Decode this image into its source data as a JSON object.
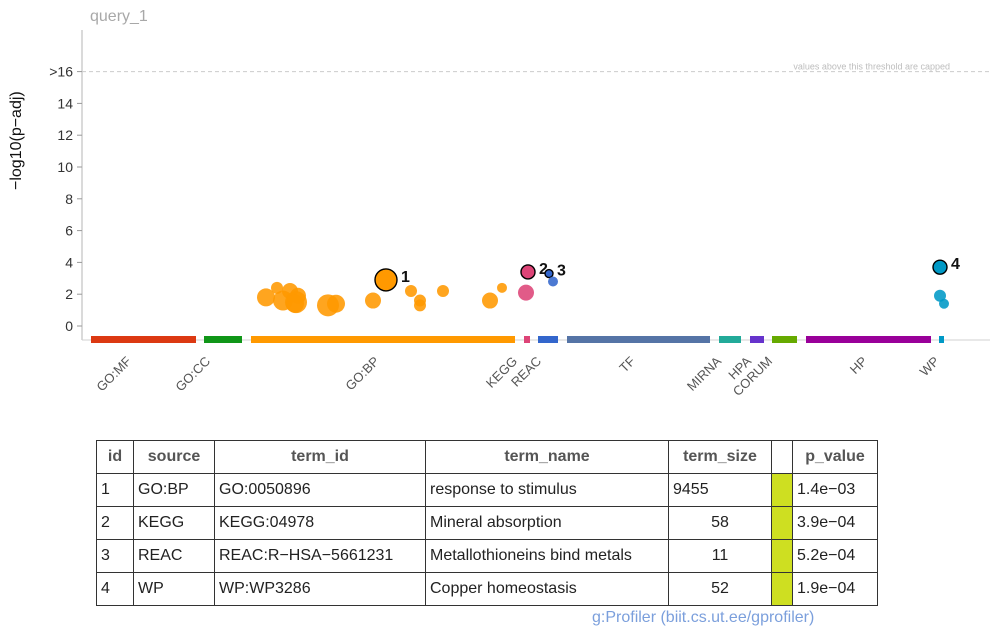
{
  "query": "query_1",
  "chart_data": {
    "type": "scatter",
    "ylabel": "−log10(p−adj)",
    "ylim": [
      0,
      17
    ],
    "y_ticks": [
      {
        "value": 0,
        "label": "0"
      },
      {
        "value": 2,
        "label": "2"
      },
      {
        "value": 4,
        "label": "4"
      },
      {
        "value": 6,
        "label": "6"
      },
      {
        "value": 8,
        "label": "8"
      },
      {
        "value": 10,
        "label": "10"
      },
      {
        "value": 12,
        "label": "12"
      },
      {
        "value": 14,
        "label": "14"
      },
      {
        "value": 16,
        "label": ">16"
      }
    ],
    "threshold": {
      "value": 16,
      "label": "values above this threshold are capped"
    },
    "sources": [
      {
        "name": "GO:MF",
        "color": "#dc3912"
      },
      {
        "name": "GO:CC",
        "color": "#109618"
      },
      {
        "name": "GO:BP",
        "color": "#ff9900"
      },
      {
        "name": "KEGG",
        "color": "#dd4477"
      },
      {
        "name": "REAC",
        "color": "#3366cc"
      },
      {
        "name": "TF",
        "color": "#5574a6"
      },
      {
        "name": "MIRNA",
        "color": "#22aa99"
      },
      {
        "name": "HPA",
        "color": "#6633cc"
      },
      {
        "name": "CORUM",
        "color": "#66aa00"
      },
      {
        "name": "HP",
        "color": "#990099"
      },
      {
        "name": "WP",
        "color": "#0099c6"
      }
    ],
    "points": [
      {
        "source": "GO:BP",
        "y": 1.8,
        "size": 9
      },
      {
        "source": "GO:BP",
        "y": 1.6,
        "size": 10
      },
      {
        "source": "GO:BP",
        "y": 2.2,
        "size": 8
      },
      {
        "source": "GO:BP",
        "y": 2.4,
        "size": 6
      },
      {
        "source": "GO:BP",
        "y": 1.5,
        "size": 11
      },
      {
        "source": "GO:BP",
        "y": 1.9,
        "size": 8
      },
      {
        "source": "GO:BP",
        "y": 1.4,
        "size": 9
      },
      {
        "source": "GO:BP",
        "y": 1.3,
        "size": 11
      },
      {
        "source": "GO:BP",
        "y": 1.4,
        "size": 9
      },
      {
        "source": "GO:BP",
        "y": 1.6,
        "size": 8
      },
      {
        "source": "GO:BP",
        "y": 2.9,
        "size": 11,
        "highlight": true,
        "label": "1"
      },
      {
        "source": "GO:BP",
        "y": 2.2,
        "size": 6
      },
      {
        "source": "GO:BP",
        "y": 1.6,
        "size": 6
      },
      {
        "source": "GO:BP",
        "y": 1.3,
        "size": 6
      },
      {
        "source": "GO:BP",
        "y": 2.2,
        "size": 6
      },
      {
        "source": "GO:BP",
        "y": 1.6,
        "size": 8
      },
      {
        "source": "GO:BP",
        "y": 2.4,
        "size": 5
      },
      {
        "source": "KEGG",
        "y": 2.1,
        "size": 8
      },
      {
        "source": "KEGG",
        "y": 3.4,
        "size": 7,
        "highlight": true,
        "label": "2"
      },
      {
        "source": "REAC",
        "y": 3.3,
        "size": 4,
        "highlight": true,
        "label": "3"
      },
      {
        "source": "REAC",
        "y": 2.8,
        "size": 5
      },
      {
        "source": "WP",
        "y": 3.7,
        "size": 7,
        "highlight": true,
        "label": "4"
      },
      {
        "source": "WP",
        "y": 1.9,
        "size": 6
      },
      {
        "source": "WP",
        "y": 1.4,
        "size": 5
      }
    ]
  },
  "table": {
    "headers": [
      "id",
      "source",
      "term_id",
      "term_name",
      "term_size",
      "",
      "p_value"
    ],
    "rows": [
      {
        "id": "1",
        "source": "GO:BP",
        "term_id": "GO:0050896",
        "term_name": "response to stimulus",
        "term_size": "9455",
        "p_value": "1.4e−03"
      },
      {
        "id": "2",
        "source": "KEGG",
        "term_id": "KEGG:04978",
        "term_name": "Mineral absorption",
        "term_size": "58",
        "p_value": "3.9e−04"
      },
      {
        "id": "3",
        "source": "REAC",
        "term_id": "REAC:R−HSA−5661231",
        "term_name": "Metallothioneins bind metals",
        "term_size": "11",
        "p_value": "5.2e−04"
      },
      {
        "id": "4",
        "source": "WP",
        "term_id": "WP:WP3286",
        "term_name": "Copper homeostasis",
        "term_size": "52",
        "p_value": "1.9e−04"
      }
    ]
  },
  "footer": "g:Profiler (biit.cs.ut.ee/gprofiler)"
}
